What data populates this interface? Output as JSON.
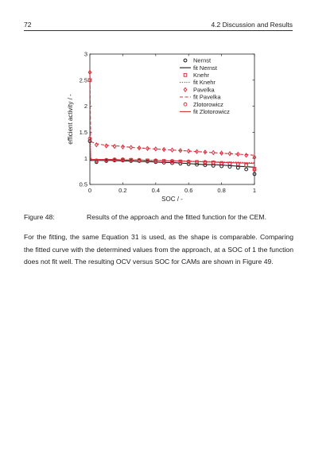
{
  "header": {
    "page_number": "72",
    "running_head": "4.2 Discussion and Results"
  },
  "figure": {
    "caption_label": "Figure 48:",
    "caption_text": "Results of the approach and the fitted function for the CEM.",
    "chart_data": {
      "type": "scatter",
      "xlabel": "SOC / -",
      "ylabel": "efficient activity / -",
      "xlim": [
        0,
        1
      ],
      "ylim": [
        0.5,
        3
      ],
      "xticks": [
        "0",
        "0.2",
        "0.4",
        "0.6",
        "0.8",
        "1"
      ],
      "yticks": [
        "0.5",
        "1",
        "1.5",
        "2",
        "2.5",
        "3"
      ],
      "grid": false,
      "legend_position": "top-right",
      "colors": {
        "black": "#1a1a1a",
        "red": "#d9303c"
      },
      "x": [
        0,
        0.005,
        0.04,
        0.1,
        0.15,
        0.2,
        0.25,
        0.3,
        0.35,
        0.4,
        0.45,
        0.5,
        0.55,
        0.6,
        0.65,
        0.7,
        0.75,
        0.8,
        0.85,
        0.9,
        0.95,
        1.0
      ],
      "series": [
        {
          "name": "Nernst",
          "kind": "marker",
          "marker": "circle",
          "color": "#1a1a1a",
          "values": [
            1.33,
            1.0,
            0.93,
            0.95,
            0.96,
            0.96,
            0.95,
            0.95,
            0.94,
            0.93,
            0.92,
            0.91,
            0.9,
            0.89,
            0.88,
            0.87,
            0.86,
            0.85,
            0.84,
            0.82,
            0.79,
            0.7
          ]
        },
        {
          "name": "fit Nernst",
          "kind": "line",
          "dash": "solid",
          "color": "#1a1a1a",
          "values": [
            1.4,
            0.96,
            0.96,
            0.96,
            0.96,
            0.95,
            0.95,
            0.94,
            0.94,
            0.93,
            0.92,
            0.92,
            0.91,
            0.9,
            0.89,
            0.88,
            0.88,
            0.87,
            0.86,
            0.85,
            0.84,
            0.83
          ]
        },
        {
          "name": "Knehr",
          "kind": "marker",
          "marker": "square",
          "color": "#d9303c",
          "values": [
            2.5,
            1.0,
            0.95,
            0.96,
            0.97,
            0.97,
            0.97,
            0.96,
            0.96,
            0.95,
            0.95,
            0.94,
            0.94,
            0.93,
            0.93,
            0.92,
            0.92,
            0.91,
            0.9,
            0.89,
            0.87,
            0.8
          ]
        },
        {
          "name": "fit Knehr",
          "kind": "line",
          "dash": "dotted",
          "color": "#d9303c",
          "values": [
            2.6,
            0.98,
            0.98,
            0.98,
            0.97,
            0.97,
            0.97,
            0.97,
            0.96,
            0.96,
            0.96,
            0.95,
            0.95,
            0.95,
            0.94,
            0.94,
            0.94,
            0.93,
            0.93,
            0.93,
            0.92,
            0.92
          ]
        },
        {
          "name": "Pavelka",
          "kind": "marker",
          "marker": "diamond",
          "color": "#d9303c",
          "values": [
            2.65,
            1.3,
            1.26,
            1.24,
            1.23,
            1.22,
            1.21,
            1.2,
            1.19,
            1.18,
            1.17,
            1.16,
            1.15,
            1.14,
            1.13,
            1.12,
            1.11,
            1.1,
            1.09,
            1.08,
            1.06,
            1.02
          ]
        },
        {
          "name": "fit Pavelka",
          "kind": "line",
          "dash": "dashed",
          "color": "#d9303c",
          "values": [
            2.7,
            1.32,
            1.28,
            1.25,
            1.24,
            1.23,
            1.21,
            1.2,
            1.19,
            1.18,
            1.17,
            1.16,
            1.15,
            1.14,
            1.13,
            1.12,
            1.11,
            1.1,
            1.09,
            1.08,
            1.07,
            1.06
          ]
        },
        {
          "name": "Zlotorowicz",
          "kind": "marker",
          "marker": "circle",
          "color": "#d9303c",
          "values": [
            1.38,
            1.0,
            0.96,
            0.97,
            0.98,
            0.98,
            0.97,
            0.97,
            0.96,
            0.96,
            0.95,
            0.95,
            0.94,
            0.94,
            0.93,
            0.93,
            0.92,
            0.91,
            0.9,
            0.89,
            0.87,
            0.78
          ]
        },
        {
          "name": "fit Zlotorowicz",
          "kind": "line",
          "dash": "solid",
          "color": "#d9303c",
          "values": [
            1.42,
            0.98,
            0.98,
            0.98,
            0.98,
            0.97,
            0.97,
            0.97,
            0.96,
            0.96,
            0.95,
            0.95,
            0.95,
            0.94,
            0.94,
            0.93,
            0.93,
            0.92,
            0.92,
            0.91,
            0.91,
            0.9
          ]
        }
      ]
    }
  },
  "body": {
    "paragraph": "For the fitting, the same Equation 31 is used, as the shape is comparable. Comparing the fitted curve with the determined values from the approach, at a SOC of 1 the function does not fit well. The resulting OCV versus SOC for CAMs are shown in Figure 49."
  }
}
